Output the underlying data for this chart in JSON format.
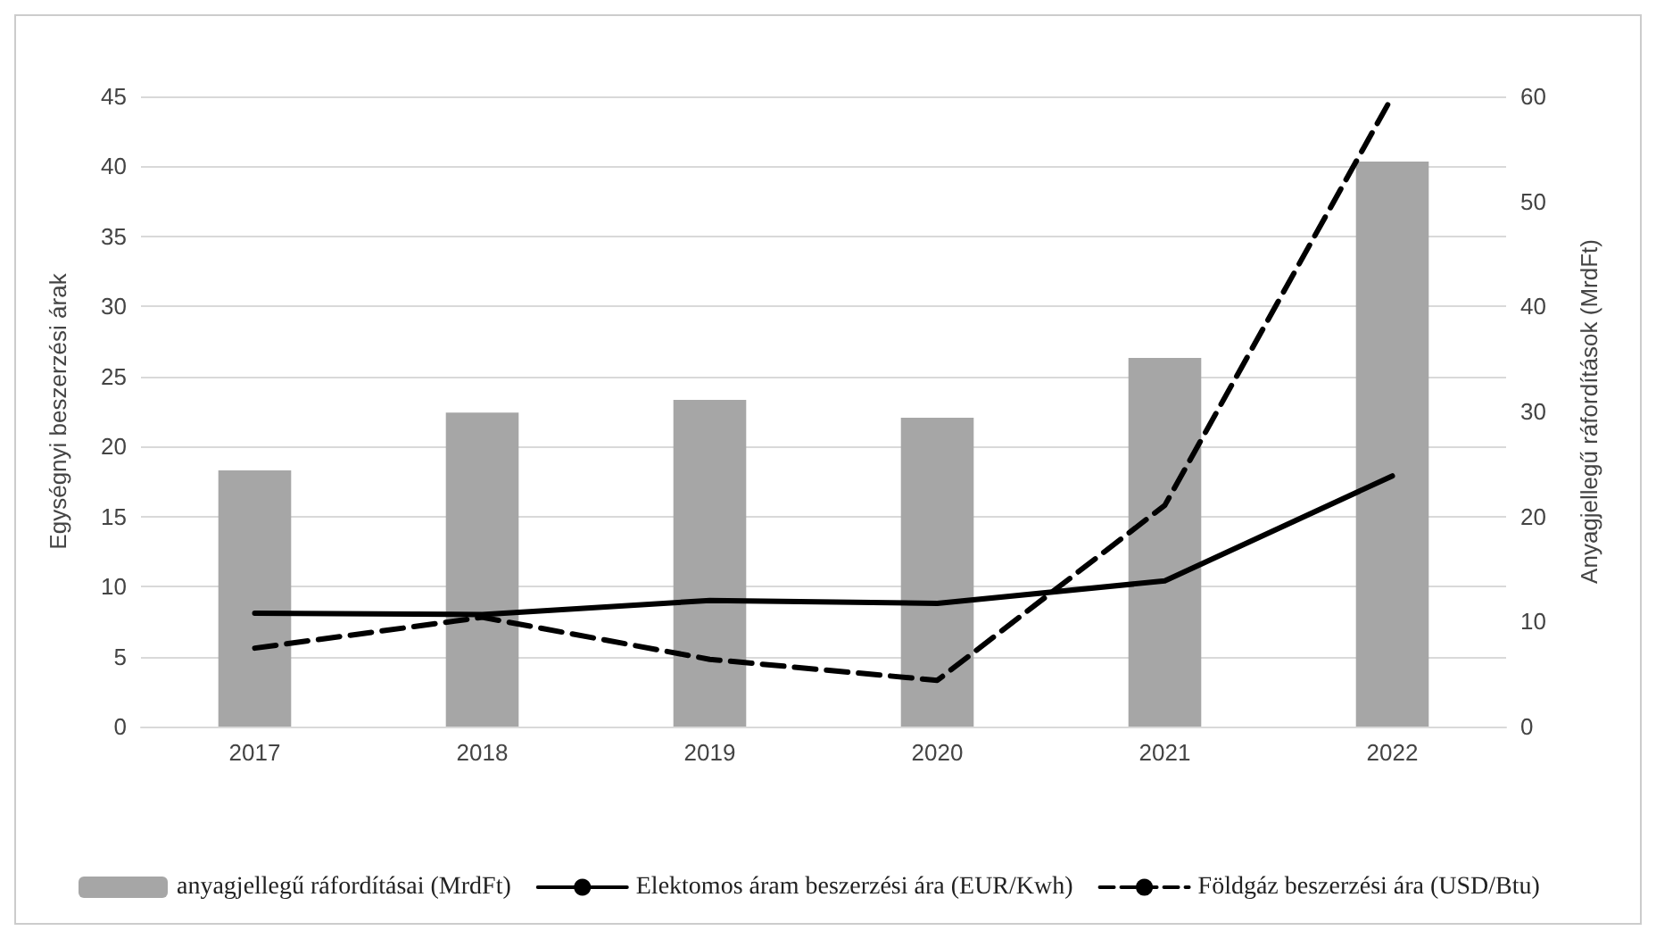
{
  "chart_data": {
    "type": "line",
    "categories": [
      "2017",
      "2018",
      "2019",
      "2020",
      "2021",
      "2022"
    ],
    "ylabel": "Egységnyi beszerzési árak",
    "y2label": "Anyagjellegű ráfordítások (MrdFt)",
    "ylim": [
      0,
      45
    ],
    "yticks": [
      0,
      5,
      10,
      15,
      20,
      25,
      30,
      35,
      40,
      45
    ],
    "y2lim": [
      0,
      60
    ],
    "y2ticks": [
      0,
      10,
      20,
      30,
      40,
      50,
      60
    ],
    "grid": "y",
    "legend": "bottom",
    "marker": "none",
    "series": [
      {
        "name": "anyagjellegű ráfordításai (MrdFt)",
        "type": "bar",
        "axis": "y2",
        "color": "#a6a6a6",
        "values": [
          24.4,
          29.9,
          31.1,
          29.4,
          35.1,
          53.8
        ]
      },
      {
        "name": "Elektomos áram beszerzési ára (EUR/Kwh)",
        "color": "#000000",
        "line_style": "solid",
        "values": [
          8.1,
          8.0,
          9.0,
          8.8,
          10.4,
          17.9
        ]
      },
      {
        "name": "Földgáz beszerzési ára (USD/Btu)",
        "color": "#000000",
        "line_style": "dashed",
        "values": [
          5.6,
          7.8,
          4.8,
          3.3,
          15.8,
          45
        ]
      }
    ]
  }
}
